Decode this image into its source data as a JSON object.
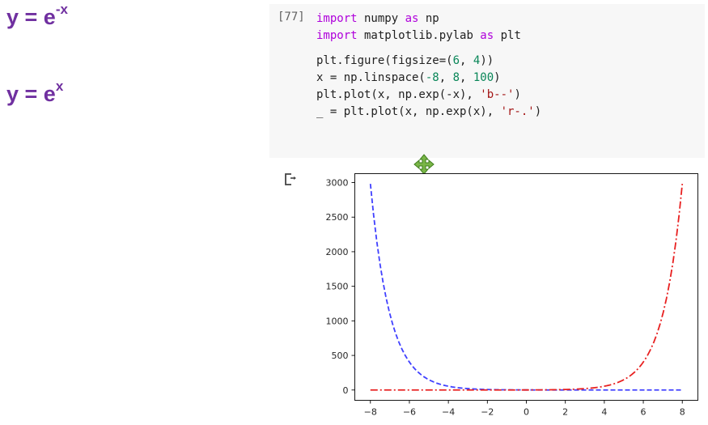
{
  "slide": {
    "equation_1": {
      "lhs": "y = e",
      "exp": "-x"
    },
    "equation_2": {
      "lhs": "y = e",
      "exp": "x"
    }
  },
  "cell": {
    "prompt": "[77]",
    "code_lines": [
      [
        {
          "t": "import",
          "c": "kw"
        },
        {
          "t": " numpy "
        },
        {
          "t": "as",
          "c": "kw"
        },
        {
          "t": " np"
        }
      ],
      [
        {
          "t": "import",
          "c": "kw"
        },
        {
          "t": " matplotlib.pylab "
        },
        {
          "t": "as",
          "c": "kw"
        },
        {
          "t": " plt"
        }
      ],
      [],
      [
        {
          "t": "plt.figure(figsize=("
        },
        {
          "t": "6",
          "c": "num"
        },
        {
          "t": ", "
        },
        {
          "t": "4",
          "c": "num"
        },
        {
          "t": "))"
        }
      ],
      [
        {
          "t": "x = np.linspace("
        },
        {
          "t": "-8",
          "c": "num"
        },
        {
          "t": ", "
        },
        {
          "t": "8",
          "c": "num"
        },
        {
          "t": ", "
        },
        {
          "t": "100",
          "c": "num"
        },
        {
          "t": ")"
        }
      ],
      [
        {
          "t": "plt.plot(x, np.exp(-x), "
        },
        {
          "t": "'b--'",
          "c": "str"
        },
        {
          "t": ")"
        }
      ],
      [
        {
          "t": "_ = plt.plot(x, np.exp(x), "
        },
        {
          "t": "'r-.'",
          "c": "str"
        },
        {
          "t": ")"
        }
      ]
    ]
  },
  "icons": {
    "output": "output-redirect-icon",
    "move": "move-cursor-icon"
  },
  "colors": {
    "equation": "#7030a0",
    "series_1": "#4040ff",
    "series_2": "#e82020"
  },
  "chart_data": {
    "type": "line",
    "title": "",
    "xlabel": "",
    "ylabel": "",
    "xlim": [
      -8.8,
      8.8
    ],
    "ylim": [
      -149,
      3129
    ],
    "x_ticks": [
      -8,
      -6,
      -4,
      -2,
      0,
      2,
      4,
      6,
      8
    ],
    "x_tick_labels": [
      "−8",
      "−6",
      "−4",
      "−2",
      "0",
      "2",
      "4",
      "6",
      "8"
    ],
    "y_ticks": [
      0,
      500,
      1000,
      1500,
      2000,
      2500,
      3000
    ],
    "y_tick_labels": [
      "0",
      "500",
      "1000",
      "1500",
      "2000",
      "2500",
      "3000"
    ],
    "grid": false,
    "series": [
      {
        "function": "exp(-x)",
        "x_range": [
          -8,
          8
        ],
        "n_points": 100,
        "color": "#4040ff",
        "style": "dashed"
      },
      {
        "function": "exp(x)",
        "x_range": [
          -8,
          8
        ],
        "n_points": 100,
        "color": "#e82020",
        "style": "dashdot"
      }
    ]
  }
}
